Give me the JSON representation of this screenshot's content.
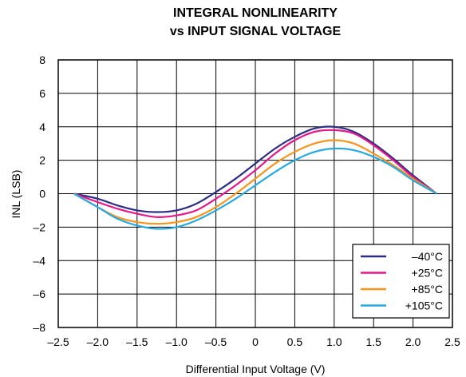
{
  "chart_data": {
    "type": "line",
    "title": "INTEGRAL NONLINEARITY",
    "subtitle": "vs INPUT SIGNAL VOLTAGE",
    "xlabel": "Differential Input Voltage (V)",
    "ylabel": "INL (LSB)",
    "xlim": [
      -2.5,
      2.5
    ],
    "ylim": [
      -8,
      8
    ],
    "x_ticks": [
      -2.5,
      -2.0,
      -1.5,
      -1.0,
      -0.5,
      0,
      0.5,
      1.0,
      1.5,
      2.0,
      2.5
    ],
    "x_tick_labels": [
      "–2.5",
      "–2.0",
      "–1.5",
      "–1.0",
      "–0.5",
      "0",
      "0.5",
      "1.0",
      "1.5",
      "2.0",
      "2.5"
    ],
    "y_ticks": [
      -8,
      -6,
      -4,
      -2,
      0,
      2,
      4,
      6,
      8
    ],
    "y_tick_labels": [
      "–8",
      "–6",
      "–4",
      "–2",
      "0",
      "2",
      "4",
      "6",
      "8"
    ],
    "grid": true,
    "legend_position": "bottom-right",
    "series": [
      {
        "name": "–40°C",
        "color": "#2b2e83",
        "x": [
          -2.3,
          -2.0,
          -1.75,
          -1.5,
          -1.25,
          -1.0,
          -0.75,
          -0.5,
          -0.25,
          0.0,
          0.25,
          0.5,
          0.75,
          1.0,
          1.25,
          1.5,
          1.75,
          2.0,
          2.3
        ],
        "y": [
          0.0,
          -0.3,
          -0.7,
          -1.0,
          -1.1,
          -1.0,
          -0.6,
          0.1,
          0.9,
          1.8,
          2.7,
          3.4,
          3.9,
          4.0,
          3.7,
          3.0,
          2.1,
          1.1,
          0.0
        ]
      },
      {
        "name": "+25°C",
        "color": "#e6178a",
        "x": [
          -2.3,
          -2.0,
          -1.75,
          -1.5,
          -1.25,
          -1.0,
          -0.75,
          -0.5,
          -0.25,
          0.0,
          0.25,
          0.5,
          0.75,
          1.0,
          1.25,
          1.5,
          1.75,
          2.0,
          2.3
        ],
        "y": [
          0.0,
          -0.5,
          -0.9,
          -1.2,
          -1.4,
          -1.3,
          -1.0,
          -0.3,
          0.5,
          1.4,
          2.4,
          3.2,
          3.7,
          3.8,
          3.6,
          2.9,
          2.0,
          1.0,
          0.0
        ]
      },
      {
        "name": "+85°C",
        "color": "#f7941d",
        "x": [
          -2.3,
          -2.0,
          -1.75,
          -1.5,
          -1.25,
          -1.0,
          -0.75,
          -0.5,
          -0.25,
          0.0,
          0.25,
          0.5,
          0.75,
          1.0,
          1.25,
          1.5,
          1.75,
          2.0,
          2.3
        ],
        "y": [
          0.0,
          -0.8,
          -1.4,
          -1.7,
          -1.8,
          -1.7,
          -1.4,
          -0.8,
          0.0,
          0.9,
          1.8,
          2.5,
          3.0,
          3.2,
          3.0,
          2.4,
          1.7,
          0.9,
          0.0
        ]
      },
      {
        "name": "+105°C",
        "color": "#27aae1",
        "x": [
          -2.3,
          -2.0,
          -1.75,
          -1.5,
          -1.25,
          -1.0,
          -0.75,
          -0.5,
          -0.25,
          0.0,
          0.25,
          0.5,
          0.75,
          1.0,
          1.25,
          1.5,
          1.75,
          2.0,
          2.3
        ],
        "y": [
          0.0,
          -0.8,
          -1.5,
          -1.9,
          -2.1,
          -2.0,
          -1.6,
          -1.0,
          -0.3,
          0.5,
          1.3,
          2.0,
          2.5,
          2.7,
          2.6,
          2.2,
          1.6,
          0.8,
          0.0
        ]
      }
    ]
  }
}
